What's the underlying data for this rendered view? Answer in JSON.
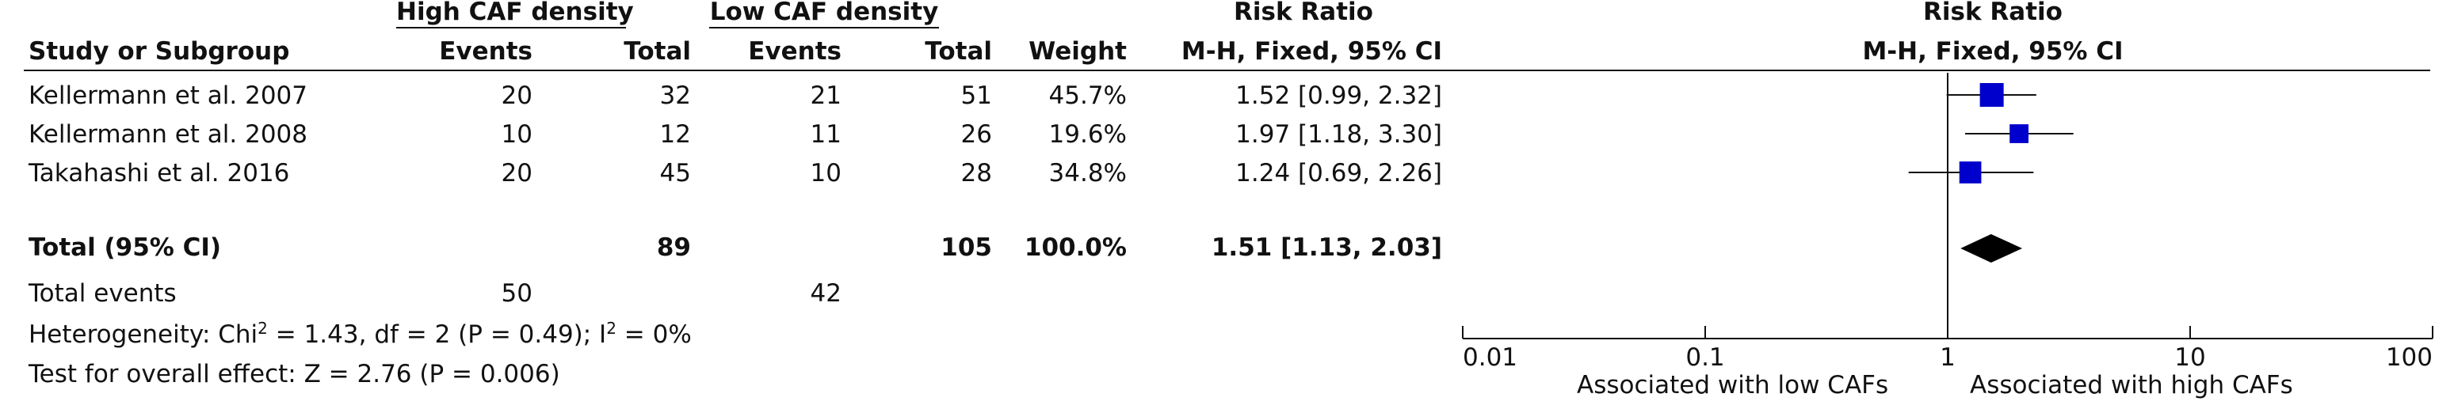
{
  "headers": {
    "group1": "High CAF density",
    "group2": "Low CAF density",
    "risk_ratio_title": "Risk Ratio",
    "risk_ratio_method": "M-H, Fixed, 95% CI",
    "study_or_subgroup": "Study or Subgroup",
    "events1": "Events",
    "total1": "Total",
    "events2": "Events",
    "total2": "Total",
    "weight": "Weight",
    "plot_title": "Risk Ratio",
    "plot_method": "M-H, Fixed, 95% CI"
  },
  "studies": [
    {
      "name": "Kellermann et al. 2007",
      "events1": "20",
      "total1": "32",
      "events2": "21",
      "total2": "51",
      "weight": "45.7%",
      "rr_text": "1.52 [0.99, 2.32]"
    },
    {
      "name": "Kellermann et al. 2008",
      "events1": "10",
      "total1": "12",
      "events2": "11",
      "total2": "26",
      "weight": "19.6%",
      "rr_text": "1.97 [1.18, 3.30]"
    },
    {
      "name": "Takahashi et al. 2016",
      "events1": "20",
      "total1": "45",
      "events2": "10",
      "total2": "28",
      "weight": "34.8%",
      "rr_text": "1.24 [0.69, 2.26]"
    }
  ],
  "total": {
    "label": "Total (95% CI)",
    "total1": "89",
    "total2": "105",
    "weight": "100.0%",
    "rr_text": "1.51 [1.13, 2.03]"
  },
  "total_events": {
    "label": "Total events",
    "events1": "50",
    "events2": "42"
  },
  "heterogeneity": {
    "prefix": "Heterogeneity: Chi",
    "sup1": "2",
    "middle": " = 1.43, df = 2 (P = 0.49); I",
    "sup2": "2",
    "suffix": " = 0%"
  },
  "overall_effect": "Test for overall effect: Z = 2.76 (P = 0.006)",
  "axis": {
    "tick_labels": [
      "0.01",
      "0.1",
      "1",
      "10",
      "100"
    ],
    "favours_left": "Associated with low CAFs",
    "favours_right": "Associated with high CAFs"
  },
  "colors": {
    "marker": "#0000cc",
    "diamond": "#000000",
    "line": "#111111"
  },
  "chart_data": {
    "type": "forest",
    "scale": "log",
    "xlim": [
      0.01,
      100
    ],
    "x_ticks": [
      0.01,
      0.1,
      1,
      10,
      100
    ],
    "null_value": 1,
    "studies": [
      {
        "name": "Kellermann et al. 2007",
        "rr": 1.52,
        "lower": 0.99,
        "upper": 2.32,
        "weight": 45.7
      },
      {
        "name": "Kellermann et al. 2008",
        "rr": 1.97,
        "lower": 1.18,
        "upper": 3.3,
        "weight": 19.6
      },
      {
        "name": "Takahashi et al. 2016",
        "rr": 1.24,
        "lower": 0.69,
        "upper": 2.26,
        "weight": 34.8
      }
    ],
    "pooled": {
      "rr": 1.51,
      "lower": 1.13,
      "upper": 2.03
    }
  }
}
